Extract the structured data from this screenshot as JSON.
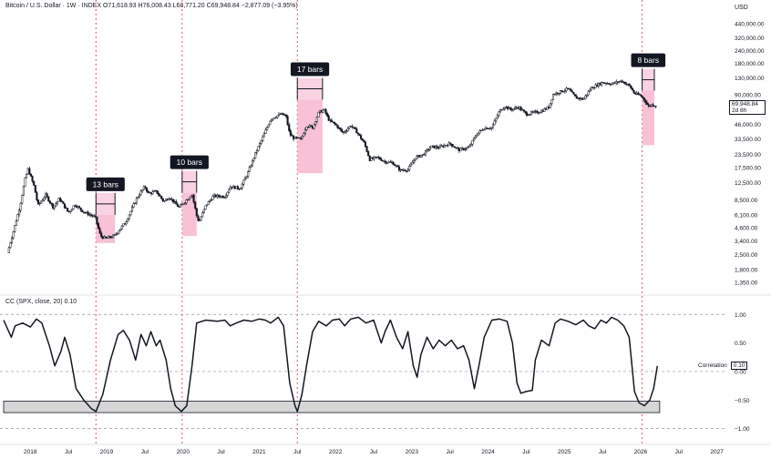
{
  "header": {
    "symbol": "Bitcoin / U.S. Dollar · 1W · INDEX",
    "ohlc": "O71,618.93 H76,008.43 L68,771.20 C69,948.84 −2,877.09 (−3.95%)"
  },
  "indicator": {
    "label": "CC (SPX, close, 20)  0.10",
    "correlation_label": "Correlation",
    "correlation_value": "0.10"
  },
  "currency": "USD",
  "last_price": {
    "value": "69,948.84",
    "countdown": "2d 8h"
  },
  "colors": {
    "candle": "#131722",
    "highlight_fill": "#f7b6cf",
    "vline": "#e4546f",
    "annotation_bg": "#131722",
    "annotation_text": "#ffffff",
    "band_fill": "#d6d6d6"
  },
  "chart_data": [
    {
      "type": "candlestick",
      "title": "Bitcoin / U.S. Dollar · 1W · INDEX",
      "y_scale": "log",
      "ylim": [
        1100,
        560000
      ],
      "xlim": [
        2017.65,
        2027.1
      ],
      "y_ticks": [
        "440,000.00",
        "320,000.00",
        "240,000.00",
        "180,000.00",
        "130,000.00",
        "90,000.00",
        "46,000.00",
        "33,500.00",
        "23,500.00",
        "17,500.00",
        "12,500.00",
        "8,500.00",
        "6,100.00",
        "4,600.00",
        "3,400.00",
        "2,500.00",
        "1,800.00",
        "1,350.00"
      ],
      "x_ticks": [
        "2018",
        "Jul",
        "2019",
        "Jul",
        "2020",
        "Jul",
        "2021",
        "Jul",
        "2022",
        "Jul",
        "2023",
        "Jul",
        "2024",
        "Jul",
        "2025",
        "Jul",
        "2026",
        "Jul",
        "2027"
      ],
      "price_path": [
        [
          2017.7,
          2600
        ],
        [
          2017.78,
          4300
        ],
        [
          2017.86,
          7200
        ],
        [
          2017.93,
          13500
        ],
        [
          2017.97,
          17000
        ],
        [
          2018.05,
          11500
        ],
        [
          2018.1,
          7500
        ],
        [
          2018.2,
          9500
        ],
        [
          2018.3,
          7200
        ],
        [
          2018.38,
          8800
        ],
        [
          2018.5,
          6400
        ],
        [
          2018.58,
          7700
        ],
        [
          2018.7,
          6500
        ],
        [
          2018.85,
          5800
        ],
        [
          2018.92,
          3800
        ],
        [
          2018.98,
          3600
        ],
        [
          2019.1,
          3800
        ],
        [
          2019.25,
          5200
        ],
        [
          2019.4,
          9000
        ],
        [
          2019.5,
          11500
        ],
        [
          2019.55,
          9800
        ],
        [
          2019.65,
          10300
        ],
        [
          2019.75,
          8200
        ],
        [
          2019.82,
          9100
        ],
        [
          2019.95,
          7200
        ],
        [
          2020.05,
          8500
        ],
        [
          2020.12,
          9800
        ],
        [
          2020.18,
          6000
        ],
        [
          2020.21,
          5200
        ],
        [
          2020.3,
          7500
        ],
        [
          2020.4,
          9300
        ],
        [
          2020.55,
          9200
        ],
        [
          2020.62,
          11500
        ],
        [
          2020.75,
          11000
        ],
        [
          2020.85,
          15500
        ],
        [
          2020.95,
          24000
        ],
        [
          2021.05,
          35000
        ],
        [
          2021.15,
          52000
        ],
        [
          2021.28,
          58000
        ],
        [
          2021.35,
          56000
        ],
        [
          2021.4,
          37000
        ],
        [
          2021.45,
          34000
        ],
        [
          2021.55,
          33000
        ],
        [
          2021.62,
          45000
        ],
        [
          2021.7,
          43000
        ],
        [
          2021.78,
          60000
        ],
        [
          2021.85,
          64000
        ],
        [
          2021.92,
          50000
        ],
        [
          2022.0,
          46000
        ],
        [
          2022.1,
          38000
        ],
        [
          2022.2,
          45000
        ],
        [
          2022.28,
          39000
        ],
        [
          2022.38,
          30000
        ],
        [
          2022.45,
          21000
        ],
        [
          2022.55,
          22000
        ],
        [
          2022.65,
          20000
        ],
        [
          2022.75,
          19500
        ],
        [
          2022.85,
          16500
        ],
        [
          2022.95,
          16800
        ],
        [
          2023.05,
          22000
        ],
        [
          2023.15,
          23500
        ],
        [
          2023.25,
          28000
        ],
        [
          2023.35,
          27500
        ],
        [
          2023.5,
          30000
        ],
        [
          2023.62,
          26000
        ],
        [
          2023.75,
          27500
        ],
        [
          2023.85,
          37000
        ],
        [
          2023.95,
          42500
        ],
        [
          2024.05,
          43000
        ],
        [
          2024.15,
          62000
        ],
        [
          2024.22,
          69000
        ],
        [
          2024.3,
          64000
        ],
        [
          2024.4,
          68000
        ],
        [
          2024.5,
          58000
        ],
        [
          2024.6,
          60000
        ],
        [
          2024.7,
          62000
        ],
        [
          2024.8,
          68000
        ],
        [
          2024.85,
          90000
        ],
        [
          2024.95,
          96000
        ],
        [
          2025.05,
          102000
        ],
        [
          2025.15,
          84000
        ],
        [
          2025.25,
          81000
        ],
        [
          2025.35,
          104000
        ],
        [
          2025.5,
          118000
        ],
        [
          2025.62,
          114000
        ],
        [
          2025.75,
          122000
        ],
        [
          2025.85,
          110000
        ],
        [
          2025.92,
          92000
        ],
        [
          2026.0,
          88000
        ],
        [
          2026.06,
          78000
        ],
        [
          2026.1,
          69000
        ],
        [
          2026.15,
          72000
        ],
        [
          2026.2,
          69949
        ]
      ],
      "annotations": [
        {
          "label": "13 bars",
          "from": 2018.86,
          "to": 2019.11,
          "box_high": 6100,
          "box_low": 3250
        },
        {
          "label": "10 bars",
          "from": 2019.99,
          "to": 2020.18,
          "box_high": 10000,
          "box_low": 3800
        },
        {
          "label": "17 bars",
          "from": 2021.5,
          "to": 2021.83,
          "box_high": 80000,
          "box_low": 15500
        },
        {
          "label": "8 bars",
          "from": 2026.02,
          "to": 2026.18,
          "box_high": 98000,
          "box_low": 29000
        }
      ],
      "vertical_markers": [
        2018.86,
        2019.99,
        2021.5,
        2026.02
      ]
    },
    {
      "type": "line",
      "title": "CC (SPX, close, 20)",
      "series": [
        {
          "name": "Correlation",
          "x_y": [
            [
              2017.65,
              0.9
            ],
            [
              2017.75,
              0.6
            ],
            [
              2017.8,
              0.8
            ],
            [
              2017.9,
              0.85
            ],
            [
              2018.0,
              0.78
            ],
            [
              2018.08,
              0.92
            ],
            [
              2018.15,
              0.85
            ],
            [
              2018.25,
              0.45
            ],
            [
              2018.32,
              0.1
            ],
            [
              2018.4,
              0.35
            ],
            [
              2018.45,
              0.6
            ],
            [
              2018.52,
              0.3
            ],
            [
              2018.6,
              -0.3
            ],
            [
              2018.7,
              -0.5
            ],
            [
              2018.8,
              -0.65
            ],
            [
              2018.86,
              -0.7
            ],
            [
              2018.95,
              -0.4
            ],
            [
              2019.05,
              0.2
            ],
            [
              2019.15,
              0.65
            ],
            [
              2019.22,
              0.72
            ],
            [
              2019.3,
              0.55
            ],
            [
              2019.38,
              0.2
            ],
            [
              2019.45,
              0.65
            ],
            [
              2019.52,
              0.45
            ],
            [
              2019.58,
              0.7
            ],
            [
              2019.65,
              0.45
            ],
            [
              2019.7,
              0.55
            ],
            [
              2019.78,
              0.2
            ],
            [
              2019.84,
              -0.3
            ],
            [
              2019.9,
              -0.6
            ],
            [
              2019.98,
              -0.7
            ],
            [
              2020.05,
              -0.6
            ],
            [
              2020.12,
              0.1
            ],
            [
              2020.18,
              0.85
            ],
            [
              2020.3,
              0.9
            ],
            [
              2020.45,
              0.88
            ],
            [
              2020.55,
              0.9
            ],
            [
              2020.62,
              0.8
            ],
            [
              2020.7,
              0.85
            ],
            [
              2020.8,
              0.9
            ],
            [
              2020.9,
              0.88
            ],
            [
              2021.0,
              0.92
            ],
            [
              2021.08,
              0.9
            ],
            [
              2021.15,
              0.85
            ],
            [
              2021.25,
              0.95
            ],
            [
              2021.32,
              0.8
            ],
            [
              2021.4,
              -0.2
            ],
            [
              2021.47,
              -0.6
            ],
            [
              2021.5,
              -0.7
            ],
            [
              2021.56,
              -0.4
            ],
            [
              2021.62,
              0.1
            ],
            [
              2021.7,
              0.7
            ],
            [
              2021.78,
              0.88
            ],
            [
              2021.88,
              0.8
            ],
            [
              2021.96,
              0.9
            ],
            [
              2022.05,
              0.92
            ],
            [
              2022.12,
              0.8
            ],
            [
              2022.2,
              0.92
            ],
            [
              2022.3,
              0.95
            ],
            [
              2022.4,
              0.85
            ],
            [
              2022.5,
              0.9
            ],
            [
              2022.6,
              0.5
            ],
            [
              2022.65,
              0.7
            ],
            [
              2022.72,
              0.9
            ],
            [
              2022.8,
              0.6
            ],
            [
              2022.88,
              0.4
            ],
            [
              2022.95,
              0.7
            ],
            [
              2023.02,
              0.1
            ],
            [
              2023.07,
              -0.1
            ],
            [
              2023.12,
              0.3
            ],
            [
              2023.2,
              0.6
            ],
            [
              2023.28,
              0.4
            ],
            [
              2023.36,
              0.55
            ],
            [
              2023.44,
              0.45
            ],
            [
              2023.52,
              0.55
            ],
            [
              2023.6,
              0.4
            ],
            [
              2023.68,
              0.45
            ],
            [
              2023.75,
              0.2
            ],
            [
              2023.82,
              -0.3
            ],
            [
              2023.88,
              0.1
            ],
            [
              2023.95,
              0.6
            ],
            [
              2024.05,
              0.9
            ],
            [
              2024.15,
              0.92
            ],
            [
              2024.25,
              0.88
            ],
            [
              2024.32,
              0.5
            ],
            [
              2024.38,
              -0.2
            ],
            [
              2024.43,
              -0.38
            ],
            [
              2024.5,
              -0.35
            ],
            [
              2024.58,
              -0.33
            ],
            [
              2024.62,
              0.2
            ],
            [
              2024.7,
              0.55
            ],
            [
              2024.8,
              0.45
            ],
            [
              2024.88,
              0.85
            ],
            [
              2024.95,
              0.92
            ],
            [
              2025.05,
              0.88
            ],
            [
              2025.15,
              0.82
            ],
            [
              2025.25,
              0.9
            ],
            [
              2025.32,
              0.8
            ],
            [
              2025.4,
              0.75
            ],
            [
              2025.48,
              0.9
            ],
            [
              2025.55,
              0.85
            ],
            [
              2025.62,
              0.95
            ],
            [
              2025.7,
              0.9
            ],
            [
              2025.78,
              0.8
            ],
            [
              2025.85,
              0.6
            ],
            [
              2025.92,
              -0.35
            ],
            [
              2025.98,
              -0.55
            ],
            [
              2026.05,
              -0.6
            ],
            [
              2026.12,
              -0.5
            ],
            [
              2026.17,
              -0.3
            ],
            [
              2026.22,
              0.1
            ]
          ]
        }
      ],
      "ylim": [
        -1.15,
        1.18
      ],
      "y_ticks": [
        "1.00",
        "0.50",
        "0.00",
        "−0.50",
        "−1.00"
      ],
      "reference_lines": [
        1.0,
        0.0,
        -1.0
      ],
      "band": {
        "from": 2017.65,
        "to": 2026.25,
        "low": -0.72,
        "high": -0.52
      }
    }
  ]
}
